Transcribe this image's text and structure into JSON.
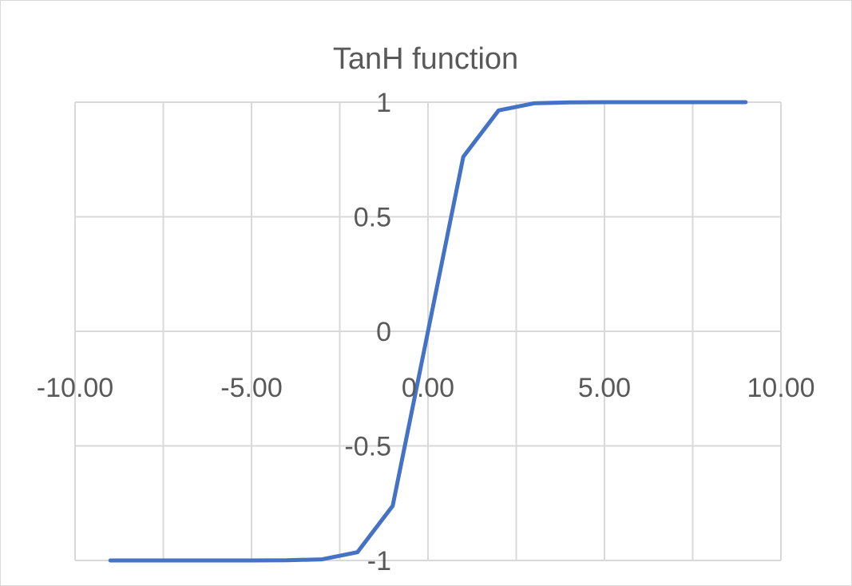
{
  "chart_data": {
    "type": "line",
    "title": "TanH function",
    "xlabel": "",
    "ylabel": "",
    "xlim": [
      -10,
      10
    ],
    "ylim": [
      -1,
      1
    ],
    "x_ticks": [
      -10,
      -5,
      0,
      5,
      10
    ],
    "x_tick_labels": [
      "-10.00",
      "-5.00",
      "0.00",
      "5.00",
      "10.00"
    ],
    "y_ticks": [
      -1,
      -0.5,
      0,
      0.5,
      1
    ],
    "y_tick_labels": [
      "-1",
      "-0.5",
      "0",
      "0.5",
      "1"
    ],
    "grid": true,
    "legend": "none",
    "series": [
      {
        "color": "#4472c4",
        "x": [
          -9,
          -8,
          -7,
          -6,
          -5,
          -4,
          -3,
          -2,
          -1,
          0,
          1,
          2,
          3,
          4,
          5,
          6,
          7,
          8,
          9
        ],
        "y": [
          -1,
          -1,
          -1,
          -1,
          -0.9999,
          -0.9993,
          -0.9951,
          -0.964,
          -0.7616,
          0,
          0.7616,
          0.964,
          0.9951,
          0.9993,
          0.9999,
          1,
          1,
          1,
          1
        ]
      }
    ]
  }
}
